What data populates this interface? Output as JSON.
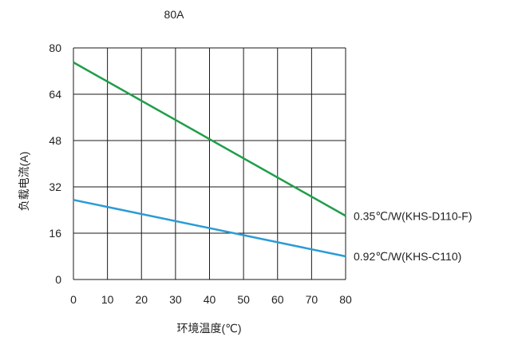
{
  "chart_data": {
    "type": "line",
    "title": "80A",
    "xlabel": "环境温度(℃)",
    "ylabel": "负载电流(A)",
    "xlim": [
      0,
      80
    ],
    "ylim": [
      0,
      80
    ],
    "x_ticks": [
      0,
      10,
      20,
      30,
      40,
      50,
      60,
      70,
      80
    ],
    "y_ticks": [
      0,
      16,
      32,
      48,
      64,
      80
    ],
    "x_tick_labels": [
      "0",
      "10",
      "20",
      "30",
      "40",
      "50",
      "60",
      "70",
      "80"
    ],
    "y_tick_labels": [
      "0",
      "16",
      "32",
      "48",
      "64",
      "80"
    ],
    "grid": true,
    "series": [
      {
        "name": "0.35℃/W(KHS-D110-F)",
        "color": "#1f9e4a",
        "x": [
          0,
          80
        ],
        "y": [
          75,
          22
        ]
      },
      {
        "name": "0.92℃/W(KHS-C110)",
        "color": "#2b9bd6",
        "x": [
          0,
          80
        ],
        "y": [
          27.5,
          8
        ]
      }
    ]
  }
}
